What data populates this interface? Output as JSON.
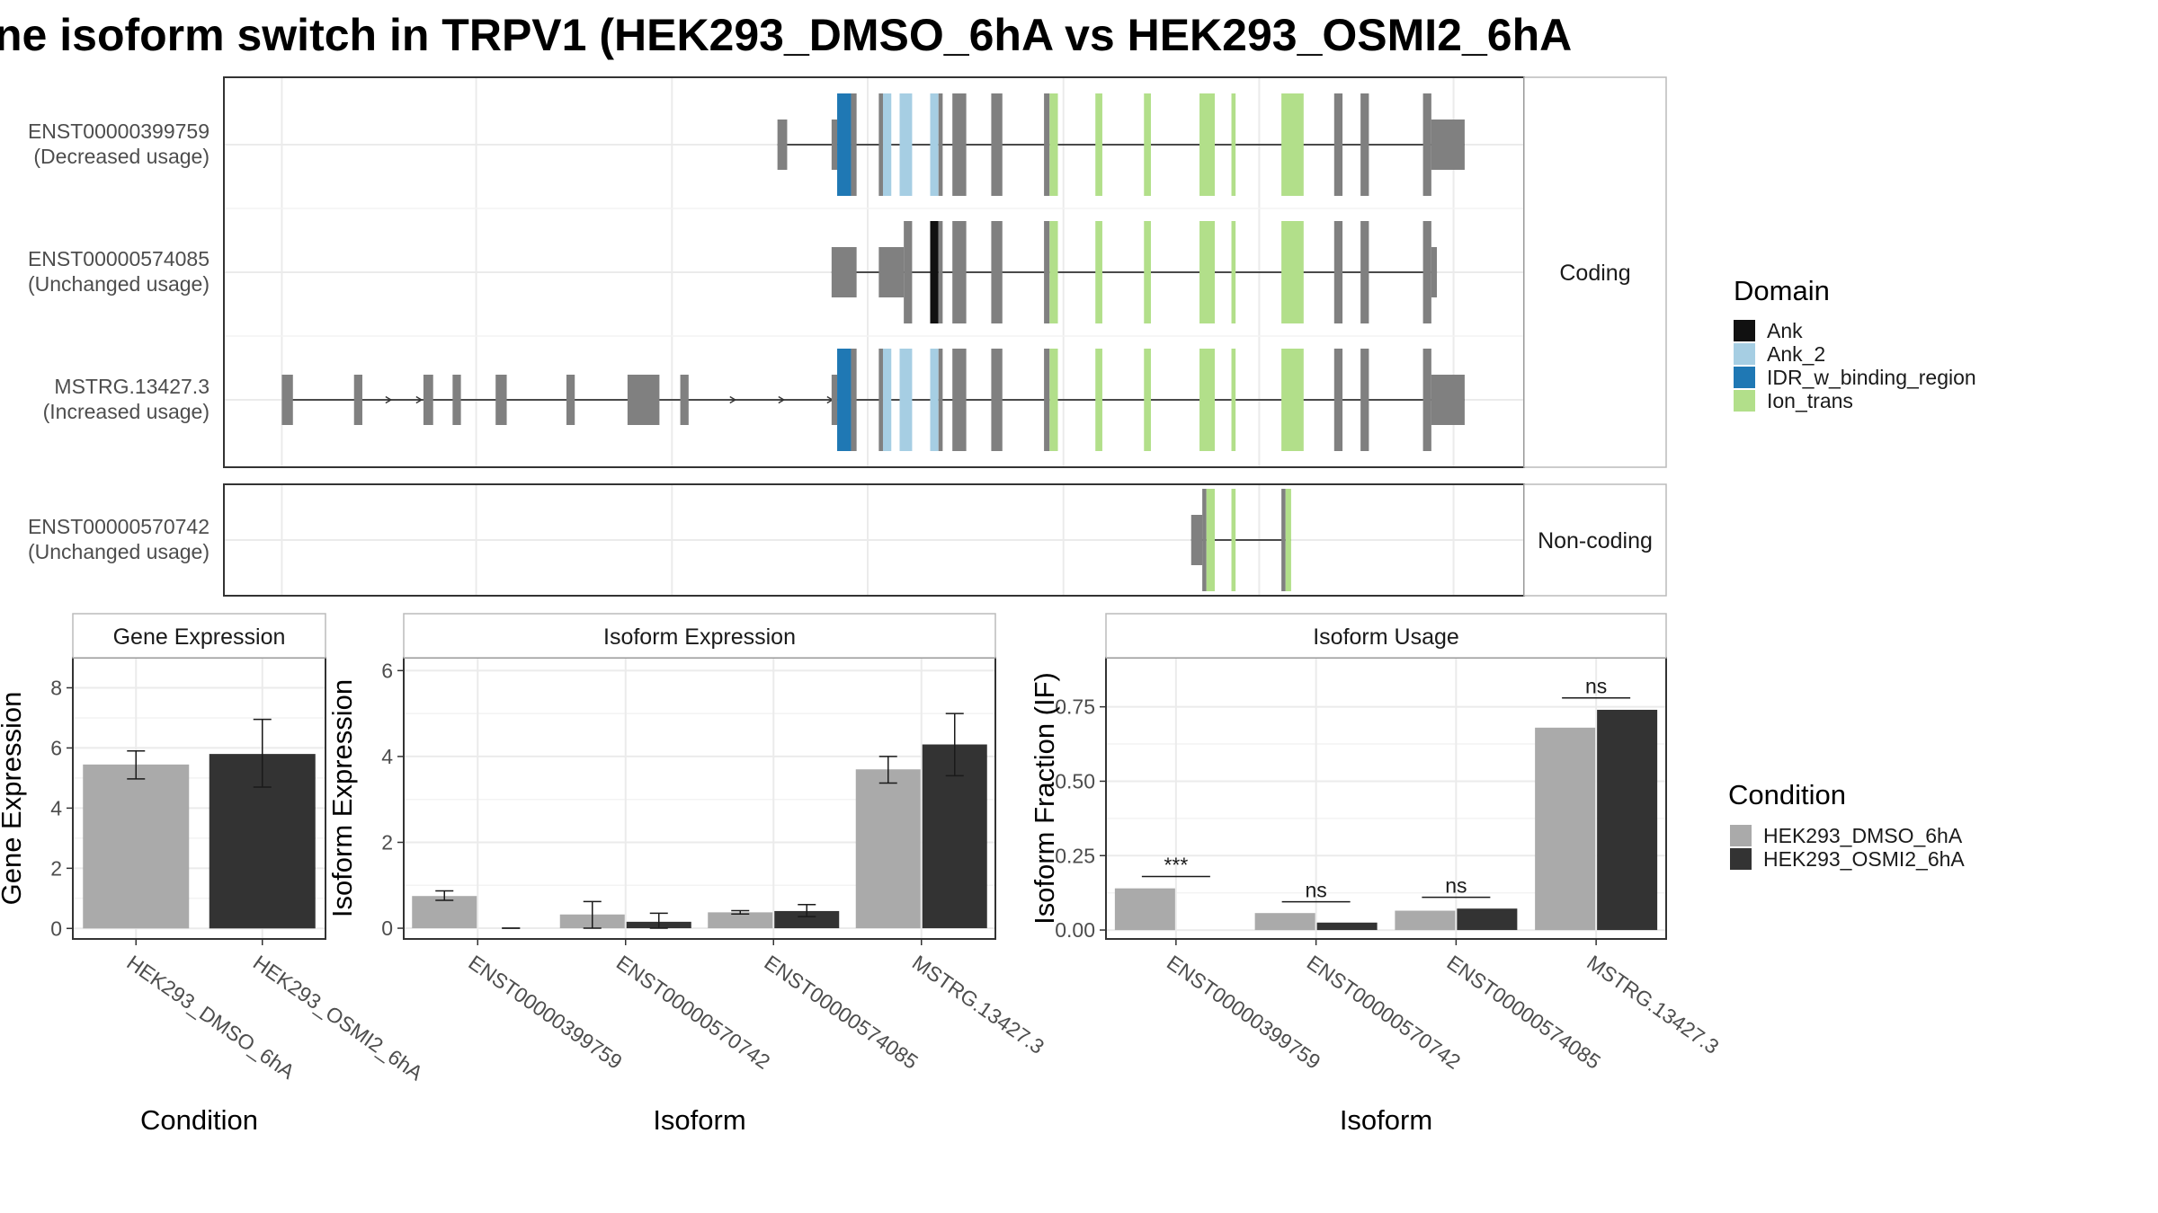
{
  "title": "ne isoform switch in TRPV1 (HEK293_DMSO_6hA vs HEK293_OSMI2_6hA",
  "colors": {
    "exon": "#808080",
    "Ank": "#111111",
    "Ank_2": "#a6cee3",
    "IDR_w_binding_region": "#1f78b4",
    "Ion_trans": "#b2df8a",
    "condition_1": "#aaaaaa",
    "condition_2": "#333333",
    "grid": "#ebebeb",
    "strip_bg": "#ffffff"
  },
  "legends": {
    "domain_title": "Domain",
    "domain_items": [
      "Ank",
      "Ank_2",
      "IDR_w_binding_region",
      "Ion_trans"
    ],
    "condition_title": "Condition",
    "condition_items": [
      "HEK293_DMSO_6hA",
      "HEK293_OSMI2_6hA"
    ]
  },
  "chart_data": [
    {
      "type": "gene-structure",
      "facets": [
        {
          "label": "Coding",
          "transcripts": [
            {
              "line1": "ENST00000399759",
              "line2": "(Decreased usage)",
              "intron": [
                560,
                1055
              ],
              "arrows": [],
              "exons": [
                {
                  "x": [
                    560,
                    567
                  ],
                  "s": "s",
                  "c": "exon"
                },
                {
                  "x": [
                    599,
                    603
                  ],
                  "s": "s",
                  "c": "exon"
                },
                {
                  "x": [
                    603,
                    613
                  ],
                  "s": "t",
                  "c": "IDR_w_binding_region"
                },
                {
                  "x": [
                    613,
                    617
                  ],
                  "s": "t",
                  "c": "exon"
                },
                {
                  "x": [
                    633,
                    636
                  ],
                  "s": "t",
                  "c": "exon"
                },
                {
                  "x": [
                    636,
                    642
                  ],
                  "s": "t",
                  "c": "Ank_2"
                },
                {
                  "x": [
                    648,
                    657
                  ],
                  "s": "t",
                  "c": "Ank_2"
                },
                {
                  "x": [
                    670,
                    676
                  ],
                  "s": "t",
                  "c": "Ank_2"
                },
                {
                  "x": [
                    676,
                    679
                  ],
                  "s": "t",
                  "c": "exon"
                },
                {
                  "x": [
                    686,
                    696
                  ],
                  "s": "t",
                  "c": "exon"
                },
                {
                  "x": [
                    714,
                    722
                  ],
                  "s": "t",
                  "c": "exon"
                },
                {
                  "x": [
                    752,
                    756
                  ],
                  "s": "t",
                  "c": "exon"
                },
                {
                  "x": [
                    756,
                    762
                  ],
                  "s": "t",
                  "c": "Ion_trans"
                },
                {
                  "x": [
                    789,
                    794
                  ],
                  "s": "t",
                  "c": "Ion_trans"
                },
                {
                  "x": [
                    824,
                    829
                  ],
                  "s": "t",
                  "c": "Ion_trans"
                },
                {
                  "x": [
                    864,
                    875
                  ],
                  "s": "t",
                  "c": "Ion_trans"
                },
                {
                  "x": [
                    887,
                    890
                  ],
                  "s": "t",
                  "c": "Ion_trans"
                },
                {
                  "x": [
                    923,
                    939
                  ],
                  "s": "t",
                  "c": "Ion_trans"
                },
                {
                  "x": [
                    961,
                    967
                  ],
                  "s": "t",
                  "c": "exon"
                },
                {
                  "x": [
                    980,
                    986
                  ],
                  "s": "t",
                  "c": "exon"
                },
                {
                  "x": [
                    1025,
                    1031
                  ],
                  "s": "t",
                  "c": "exon"
                },
                {
                  "x": [
                    1031,
                    1055
                  ],
                  "s": "s",
                  "c": "exon"
                }
              ]
            },
            {
              "line1": "ENST00000574085",
              "line2": "(Unchanged usage)",
              "intron": [
                599,
                1035
              ],
              "arrows": [],
              "exons": [
                {
                  "x": [
                    599,
                    617
                  ],
                  "s": "s",
                  "c": "exon"
                },
                {
                  "x": [
                    633,
                    651
                  ],
                  "s": "s",
                  "c": "exon"
                },
                {
                  "x": [
                    651,
                    657
                  ],
                  "s": "t",
                  "c": "exon"
                },
                {
                  "x": [
                    670,
                    676
                  ],
                  "s": "t",
                  "c": "Ank"
                },
                {
                  "x": [
                    676,
                    679
                  ],
                  "s": "t",
                  "c": "exon"
                },
                {
                  "x": [
                    686,
                    696
                  ],
                  "s": "t",
                  "c": "exon"
                },
                {
                  "x": [
                    714,
                    722
                  ],
                  "s": "t",
                  "c": "exon"
                },
                {
                  "x": [
                    752,
                    756
                  ],
                  "s": "t",
                  "c": "exon"
                },
                {
                  "x": [
                    756,
                    762
                  ],
                  "s": "t",
                  "c": "Ion_trans"
                },
                {
                  "x": [
                    789,
                    794
                  ],
                  "s": "t",
                  "c": "Ion_trans"
                },
                {
                  "x": [
                    824,
                    829
                  ],
                  "s": "t",
                  "c": "Ion_trans"
                },
                {
                  "x": [
                    864,
                    875
                  ],
                  "s": "t",
                  "c": "Ion_trans"
                },
                {
                  "x": [
                    887,
                    890
                  ],
                  "s": "t",
                  "c": "Ion_trans"
                },
                {
                  "x": [
                    923,
                    939
                  ],
                  "s": "t",
                  "c": "Ion_trans"
                },
                {
                  "x": [
                    961,
                    967
                  ],
                  "s": "t",
                  "c": "exon"
                },
                {
                  "x": [
                    980,
                    986
                  ],
                  "s": "t",
                  "c": "exon"
                },
                {
                  "x": [
                    1025,
                    1031
                  ],
                  "s": "t",
                  "c": "exon"
                },
                {
                  "x": [
                    1031,
                    1035
                  ],
                  "s": "s",
                  "c": "exon"
                }
              ]
            },
            {
              "line1": "MSTRG.13427.3",
              "line2": "(Increased usage)",
              "intron": [
                203,
                1055
              ],
              "arrows": [
                281,
                303,
                529,
                564,
                599
              ],
              "exons": [
                {
                  "x": [
                    203,
                    211
                  ],
                  "s": "s",
                  "c": "exon"
                },
                {
                  "x": [
                    255,
                    261
                  ],
                  "s": "s",
                  "c": "exon"
                },
                {
                  "x": [
                    305,
                    312
                  ],
                  "s": "s",
                  "c": "exon"
                },
                {
                  "x": [
                    326,
                    332
                  ],
                  "s": "s",
                  "c": "exon"
                },
                {
                  "x": [
                    357,
                    365
                  ],
                  "s": "s",
                  "c": "exon"
                },
                {
                  "x": [
                    408,
                    414
                  ],
                  "s": "s",
                  "c": "exon"
                },
                {
                  "x": [
                    452,
                    475
                  ],
                  "s": "s",
                  "c": "exon"
                },
                {
                  "x": [
                    490,
                    496
                  ],
                  "s": "s",
                  "c": "exon"
                },
                {
                  "x": [
                    599,
                    603
                  ],
                  "s": "s",
                  "c": "exon"
                },
                {
                  "x": [
                    603,
                    613
                  ],
                  "s": "t",
                  "c": "IDR_w_binding_region"
                },
                {
                  "x": [
                    613,
                    617
                  ],
                  "s": "t",
                  "c": "exon"
                },
                {
                  "x": [
                    633,
                    636
                  ],
                  "s": "t",
                  "c": "exon"
                },
                {
                  "x": [
                    636,
                    642
                  ],
                  "s": "t",
                  "c": "Ank_2"
                },
                {
                  "x": [
                    648,
                    657
                  ],
                  "s": "t",
                  "c": "Ank_2"
                },
                {
                  "x": [
                    670,
                    676
                  ],
                  "s": "t",
                  "c": "Ank_2"
                },
                {
                  "x": [
                    676,
                    679
                  ],
                  "s": "t",
                  "c": "exon"
                },
                {
                  "x": [
                    686,
                    696
                  ],
                  "s": "t",
                  "c": "exon"
                },
                {
                  "x": [
                    714,
                    722
                  ],
                  "s": "t",
                  "c": "exon"
                },
                {
                  "x": [
                    752,
                    756
                  ],
                  "s": "t",
                  "c": "exon"
                },
                {
                  "x": [
                    756,
                    762
                  ],
                  "s": "t",
                  "c": "Ion_trans"
                },
                {
                  "x": [
                    789,
                    794
                  ],
                  "s": "t",
                  "c": "Ion_trans"
                },
                {
                  "x": [
                    824,
                    829
                  ],
                  "s": "t",
                  "c": "Ion_trans"
                },
                {
                  "x": [
                    864,
                    875
                  ],
                  "s": "t",
                  "c": "Ion_trans"
                },
                {
                  "x": [
                    887,
                    890
                  ],
                  "s": "t",
                  "c": "Ion_trans"
                },
                {
                  "x": [
                    923,
                    939
                  ],
                  "s": "t",
                  "c": "Ion_trans"
                },
                {
                  "x": [
                    961,
                    967
                  ],
                  "s": "t",
                  "c": "exon"
                },
                {
                  "x": [
                    980,
                    986
                  ],
                  "s": "t",
                  "c": "exon"
                },
                {
                  "x": [
                    1025,
                    1031
                  ],
                  "s": "t",
                  "c": "exon"
                },
                {
                  "x": [
                    1031,
                    1055
                  ],
                  "s": "s",
                  "c": "exon"
                }
              ]
            }
          ]
        },
        {
          "label": "Non-coding",
          "transcripts": [
            {
              "line1": "ENST00000570742",
              "line2": "(Unchanged usage)",
              "intron": [
                858,
                930
              ],
              "arrows": [],
              "exons": [
                {
                  "x": [
                    858,
                    866
                  ],
                  "s": "s",
                  "c": "exon"
                },
                {
                  "x": [
                    866,
                    869
                  ],
                  "s": "t",
                  "c": "exon"
                },
                {
                  "x": [
                    869,
                    875
                  ],
                  "s": "t",
                  "c": "Ion_trans"
                },
                {
                  "x": [
                    887,
                    890
                  ],
                  "s": "t",
                  "c": "Ion_trans"
                },
                {
                  "x": [
                    923,
                    926
                  ],
                  "s": "t",
                  "c": "exon"
                },
                {
                  "x": [
                    926,
                    930
                  ],
                  "s": "t",
                  "c": "Ion_trans"
                }
              ]
            }
          ]
        }
      ]
    },
    {
      "type": "bar",
      "title": "Gene Expression",
      "xlabel": "Condition",
      "ylabel": "Gene Expression",
      "categories": [
        "HEK293_DMSO_6hA",
        "HEK293_OSMI2_6hA"
      ],
      "series": [
        {
          "values": [
            5.45,
            5.8
          ],
          "err_low": [
            4.97,
            4.7
          ],
          "err_high": [
            5.9,
            6.95
          ]
        }
      ],
      "ylim": [
        -0.35,
        9
      ],
      "yticks": [
        0,
        2,
        4,
        6,
        8
      ],
      "ytick_labels": [
        "0",
        "2",
        "4",
        "6",
        "8"
      ],
      "significance": []
    },
    {
      "type": "bar",
      "title": "Isoform Expression",
      "xlabel": "Isoform",
      "ylabel": "Isoform Expression",
      "categories": [
        "ENST00000399759",
        "ENST00000570742",
        "ENST00000574085",
        "MSTRG.13427.3"
      ],
      "series": [
        {
          "name": "HEK293_DMSO_6hA",
          "values": [
            0.75,
            0.32,
            0.37,
            3.7
          ],
          "err_low": [
            0.65,
            0.0,
            0.33,
            3.38
          ],
          "err_high": [
            0.87,
            0.62,
            0.41,
            4.0
          ]
        },
        {
          "name": "HEK293_OSMI2_6hA",
          "values": [
            0.0,
            0.15,
            0.4,
            4.28
          ],
          "err_low": [
            0.0,
            0.0,
            0.27,
            3.55
          ],
          "err_high": [
            0.0,
            0.35,
            0.55,
            5.0
          ]
        }
      ],
      "ylim": [
        -0.25,
        6.3
      ],
      "yticks": [
        0,
        2,
        4,
        6
      ],
      "ytick_labels": [
        "0",
        "2",
        "4",
        "6"
      ],
      "significance": []
    },
    {
      "type": "bar",
      "title": "Isoform Usage",
      "xlabel": "Isoform",
      "ylabel": "Isoform Fraction (IF)",
      "categories": [
        "ENST00000399759",
        "ENST00000570742",
        "ENST00000574085",
        "MSTRG.13427.3"
      ],
      "series": [
        {
          "name": "HEK293_DMSO_6hA",
          "values": [
            0.14,
            0.057,
            0.065,
            0.68
          ]
        },
        {
          "name": "HEK293_OSMI2_6hA",
          "values": [
            0.0,
            0.025,
            0.072,
            0.74
          ]
        }
      ],
      "ylim": [
        -0.03,
        0.915
      ],
      "yticks": [
        0,
        0.25,
        0.5,
        0.75
      ],
      "ytick_labels": [
        "0.00",
        "0.25",
        "0.50",
        "0.75"
      ],
      "significance": [
        {
          "label": "***",
          "y": 0.18
        },
        {
          "label": "ns",
          "y": 0.095
        },
        {
          "label": "ns",
          "y": 0.11
        },
        {
          "label": "ns",
          "y": 0.78
        }
      ]
    }
  ]
}
